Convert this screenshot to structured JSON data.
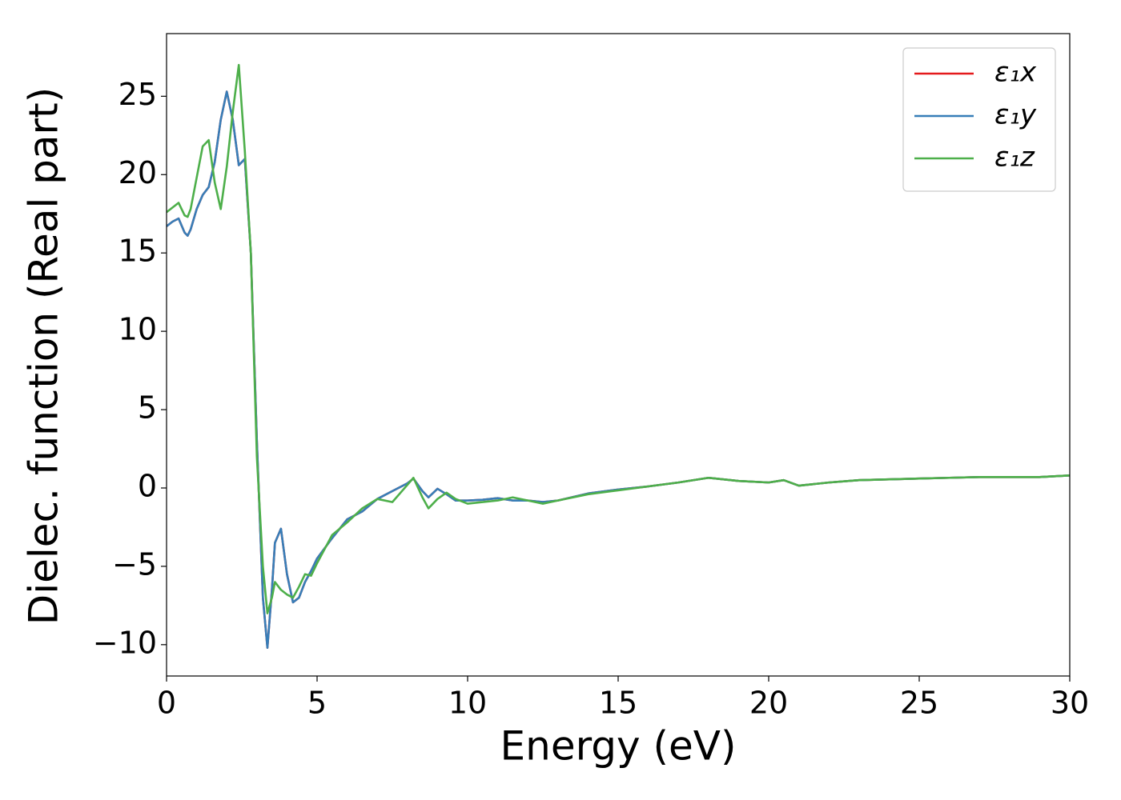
{
  "chart_data": {
    "type": "line",
    "x_label": "Energy (eV)",
    "y_label": "Dielec. function (Real part)",
    "x": [
      0,
      0.2,
      0.4,
      0.6,
      0.7,
      0.8,
      1.0,
      1.2,
      1.4,
      1.6,
      1.8,
      2.0,
      2.2,
      2.4,
      2.6,
      2.8,
      3.0,
      3.2,
      3.35,
      3.5,
      3.6,
      3.8,
      4.0,
      4.2,
      4.4,
      4.6,
      4.8,
      5,
      5.5,
      6,
      6.5,
      7,
      7.5,
      8,
      8.2,
      8.5,
      8.7,
      9,
      9.3,
      9.6,
      10,
      10.5,
      11,
      11.5,
      12,
      12.5,
      13,
      14,
      15,
      16,
      17,
      18,
      19,
      20,
      20.5,
      21,
      22,
      23,
      24,
      25,
      26,
      27,
      28,
      29,
      30
    ],
    "series": [
      {
        "name": "ε₁x",
        "color": "#e41a1c",
        "values": [
          16.7,
          17.0,
          17.2,
          16.3,
          16.1,
          16.5,
          17.8,
          18.7,
          19.2,
          20.8,
          23.5,
          25.3,
          23.5,
          20.6,
          21.0,
          15,
          3,
          -7,
          -10.2,
          -6.5,
          -3.5,
          -2.6,
          -5.5,
          -7.3,
          -7,
          -6,
          -5.3,
          -4.5,
          -3.2,
          -2,
          -1.5,
          -0.7,
          -0.2,
          0.3,
          0.6,
          -0.2,
          -0.6,
          -0.05,
          -0.4,
          -0.8,
          -0.8,
          -0.75,
          -0.65,
          -0.8,
          -0.8,
          -0.9,
          -0.8,
          -0.35,
          -0.1,
          0.1,
          0.35,
          0.65,
          0.45,
          0.35,
          0.5,
          0.15,
          0.35,
          0.5,
          0.55,
          0.6,
          0.65,
          0.7,
          0.7,
          0.7,
          0.8
        ]
      },
      {
        "name": "ε₁y",
        "color": "#377eb8",
        "values": [
          16.7,
          17.0,
          17.2,
          16.3,
          16.1,
          16.5,
          17.8,
          18.7,
          19.2,
          20.8,
          23.5,
          25.3,
          23.5,
          20.6,
          21.0,
          15,
          3,
          -7,
          -10.2,
          -6.5,
          -3.5,
          -2.6,
          -5.5,
          -7.3,
          -7,
          -6,
          -5.3,
          -4.5,
          -3.2,
          -2,
          -1.5,
          -0.7,
          -0.2,
          0.3,
          0.6,
          -0.2,
          -0.6,
          -0.05,
          -0.4,
          -0.8,
          -0.8,
          -0.75,
          -0.65,
          -0.8,
          -0.8,
          -0.9,
          -0.8,
          -0.35,
          -0.1,
          0.1,
          0.35,
          0.65,
          0.45,
          0.35,
          0.5,
          0.15,
          0.35,
          0.5,
          0.55,
          0.6,
          0.65,
          0.7,
          0.7,
          0.7,
          0.8
        ]
      },
      {
        "name": "ε₁z",
        "color": "#4daf4a",
        "values": [
          17.6,
          17.9,
          18.2,
          17.4,
          17.3,
          17.8,
          19.8,
          21.8,
          22.2,
          19.5,
          17.8,
          20.5,
          24,
          27,
          21.5,
          15,
          2,
          -5,
          -8,
          -7,
          -6,
          -6.5,
          -6.8,
          -7,
          -6.3,
          -5.5,
          -5.6,
          -4.8,
          -3.0,
          -2.2,
          -1.3,
          -0.7,
          -0.9,
          0.2,
          0.65,
          -0.6,
          -1.3,
          -0.7,
          -0.3,
          -0.7,
          -1.0,
          -0.9,
          -0.8,
          -0.6,
          -0.8,
          -1.0,
          -0.8,
          -0.4,
          -0.15,
          0.1,
          0.35,
          0.65,
          0.45,
          0.35,
          0.5,
          0.15,
          0.35,
          0.5,
          0.55,
          0.6,
          0.65,
          0.7,
          0.7,
          0.7,
          0.8
        ]
      }
    ],
    "xlim": [
      0,
      30
    ],
    "xticks": [
      0,
      5,
      10,
      15,
      20,
      25,
      30
    ],
    "ylim": [
      -12,
      29
    ],
    "yticks": [
      {
        "value": -10,
        "label": "−10"
      },
      {
        "value": -5,
        "label": "−5"
      },
      0,
      5,
      10,
      15,
      20,
      25
    ],
    "legend": "upper right",
    "grid": false
  }
}
